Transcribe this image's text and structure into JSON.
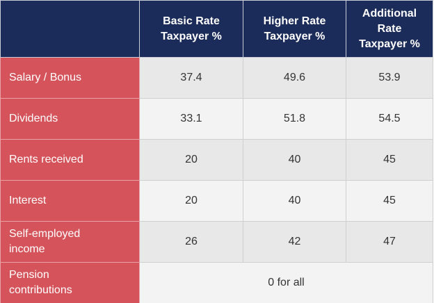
{
  "table": {
    "header": [
      "Basic Rate Taxpayer %",
      "Higher Rate Taxpayer %",
      "Additional Rate Taxpayer %"
    ],
    "rows": [
      {
        "label": "Salary / Bonus",
        "values": [
          "37.4",
          "49.6",
          "53.9"
        ]
      },
      {
        "label": "Dividends",
        "values": [
          "33.1",
          "51.8",
          "54.5"
        ]
      },
      {
        "label": "Rents received",
        "values": [
          "20",
          "40",
          "45"
        ]
      },
      {
        "label": "Interest",
        "values": [
          "20",
          "40",
          "45"
        ]
      },
      {
        "label": "Self-employed income",
        "values": [
          "26",
          "42",
          "47"
        ]
      },
      {
        "label": "Pension contributions",
        "values": [
          "0 for all"
        ]
      }
    ]
  }
}
